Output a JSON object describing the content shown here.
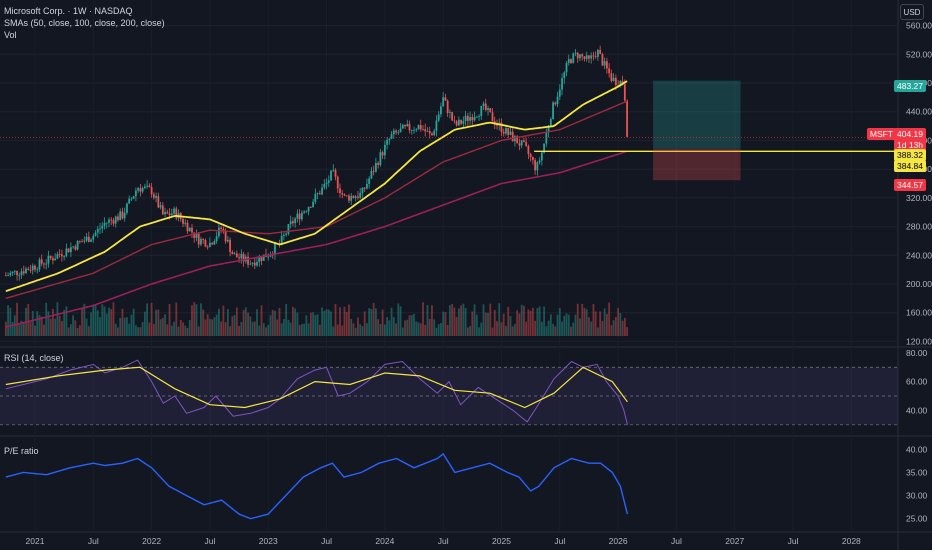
{
  "header": {
    "symbol_line": "Microsoft Corp. · 1W · NASDAQ",
    "sma_line": "SMAs (50, close, 100, close, 200, close)",
    "vol_label": "Vol",
    "currency": "USD"
  },
  "rsi_panel": {
    "label": "RSI (14, close)"
  },
  "pe_panel": {
    "label": "P/E ratio"
  },
  "price_tags": [
    {
      "text": "483.27",
      "color": "#26a69a"
    },
    {
      "text": "MSFT",
      "color": "#f23645"
    },
    {
      "text": "404.19",
      "color": "#f23645"
    },
    {
      "text": "1d 13h",
      "color": "#f23645"
    },
    {
      "text": "388.32",
      "color": "#f5e642",
      "textColor": "#000000"
    },
    {
      "text": "384.84",
      "color": "#f5e642",
      "textColor": "#000000"
    },
    {
      "text": "344.57",
      "color": "#f23645"
    }
  ],
  "colors": {
    "background": "#131722",
    "up": "#26a69a",
    "down": "#ef5350",
    "sma50": "#f5e642",
    "sma100": "#9c2b3f",
    "sma200": "#9c1f5a",
    "rsi_line": "#7e57c2",
    "rsi_ma": "#f5e642",
    "pe_line": "#2962ff",
    "hline": "#f5e642"
  },
  "chart_data": [
    {
      "type": "candlestick",
      "title": "Microsoft Corp. · 1W · NASDAQ",
      "y_axis_ticks": [
        560,
        520,
        480,
        440,
        400,
        360,
        320,
        280,
        240,
        200,
        160,
        120
      ],
      "x_axis_ticks": [
        "2021",
        "Jul",
        "2022",
        "Jul",
        "2023",
        "Jul",
        "2024",
        "Jul",
        "2025",
        "Jul",
        "2026",
        "Jul",
        "2027",
        "Jul",
        "2028"
      ],
      "x_tick_years": [
        2021.0,
        2021.5,
        2022.0,
        2022.5,
        2023.0,
        2023.5,
        2024.0,
        2024.5,
        2025.0,
        2025.5,
        2026.0,
        2026.5,
        2027.0,
        2027.5,
        2028.0
      ],
      "xlim": [
        2020.7,
        2028.4
      ],
      "ylim": [
        115,
        565
      ],
      "close_path": [
        [
          2020.75,
          212
        ],
        [
          2020.95,
          222
        ],
        [
          2021.1,
          232
        ],
        [
          2021.3,
          250
        ],
        [
          2021.5,
          268
        ],
        [
          2021.6,
          285
        ],
        [
          2021.75,
          296
        ],
        [
          2021.88,
          335
        ],
        [
          2022.0,
          330
        ],
        [
          2022.1,
          295
        ],
        [
          2022.2,
          300
        ],
        [
          2022.3,
          282
        ],
        [
          2022.4,
          262
        ],
        [
          2022.5,
          257
        ],
        [
          2022.6,
          278
        ],
        [
          2022.7,
          240
        ],
        [
          2022.85,
          230
        ],
        [
          2023.0,
          242
        ],
        [
          2023.1,
          256
        ],
        [
          2023.2,
          285
        ],
        [
          2023.35,
          310
        ],
        [
          2023.5,
          340
        ],
        [
          2023.55,
          355
        ],
        [
          2023.65,
          320
        ],
        [
          2023.8,
          325
        ],
        [
          2023.95,
          375
        ],
        [
          2024.05,
          405
        ],
        [
          2024.15,
          415
        ],
        [
          2024.3,
          420
        ],
        [
          2024.4,
          405
        ],
        [
          2024.5,
          458
        ],
        [
          2024.6,
          420
        ],
        [
          2024.7,
          430
        ],
        [
          2024.85,
          445
        ],
        [
          2024.95,
          425
        ],
        [
          2025.05,
          410
        ],
        [
          2025.2,
          390
        ],
        [
          2025.3,
          360
        ],
        [
          2025.35,
          385
        ],
        [
          2025.42,
          435
        ],
        [
          2025.5,
          475
        ],
        [
          2025.58,
          512
        ],
        [
          2025.65,
          520
        ],
        [
          2025.75,
          510
        ],
        [
          2025.82,
          525
        ],
        [
          2025.88,
          505
        ],
        [
          2025.95,
          485
        ],
        [
          2026.05,
          480
        ],
        [
          2026.08,
          404
        ]
      ],
      "sma50_path": [
        [
          2020.75,
          190
        ],
        [
          2021.2,
          215
        ],
        [
          2021.6,
          245
        ],
        [
          2021.9,
          280
        ],
        [
          2022.2,
          295
        ],
        [
          2022.5,
          290
        ],
        [
          2022.8,
          270
        ],
        [
          2023.1,
          255
        ],
        [
          2023.4,
          270
        ],
        [
          2023.7,
          305
        ],
        [
          2024.0,
          340
        ],
        [
          2024.3,
          385
        ],
        [
          2024.6,
          415
        ],
        [
          2024.9,
          425
        ],
        [
          2025.2,
          415
        ],
        [
          2025.45,
          420
        ],
        [
          2025.7,
          450
        ],
        [
          2026.0,
          475
        ],
        [
          2026.08,
          483
        ]
      ],
      "sma100_path": [
        [
          2020.75,
          180
        ],
        [
          2021.5,
          215
        ],
        [
          2022.0,
          255
        ],
        [
          2022.5,
          275
        ],
        [
          2023.0,
          270
        ],
        [
          2023.5,
          280
        ],
        [
          2024.0,
          320
        ],
        [
          2024.5,
          370
        ],
        [
          2025.0,
          400
        ],
        [
          2025.5,
          415
        ],
        [
          2026.08,
          455
        ]
      ],
      "sma200_path": [
        [
          2020.75,
          140
        ],
        [
          2021.5,
          170
        ],
        [
          2022.0,
          200
        ],
        [
          2022.5,
          225
        ],
        [
          2023.0,
          240
        ],
        [
          2023.5,
          255
        ],
        [
          2024.0,
          280
        ],
        [
          2024.5,
          310
        ],
        [
          2025.0,
          340
        ],
        [
          2025.5,
          355
        ],
        [
          2026.08,
          385
        ]
      ],
      "horizontal_line": 384.84,
      "long_position": {
        "entry": 388.32,
        "target": 483.27,
        "stop": 344.57,
        "x_start": 2026.3,
        "x_end": 2027.05
      }
    },
    {
      "type": "line",
      "title": "RSI (14, close)",
      "y_axis_ticks": [
        80.0,
        60.0,
        40.0
      ],
      "ylim": [
        25,
        82
      ],
      "levels": [
        70,
        50,
        30
      ],
      "series": [
        {
          "name": "RSI (14, close)",
          "points": [
            [
              2020.75,
              55
            ],
            [
              2020.9,
              58
            ],
            [
              2021.1,
              62
            ],
            [
              2021.3,
              68
            ],
            [
              2021.5,
              72
            ],
            [
              2021.6,
              66
            ],
            [
              2021.75,
              70
            ],
            [
              2021.88,
              75
            ],
            [
              2022.0,
              60
            ],
            [
              2022.1,
              45
            ],
            [
              2022.2,
              50
            ],
            [
              2022.3,
              38
            ],
            [
              2022.45,
              42
            ],
            [
              2022.55,
              50
            ],
            [
              2022.7,
              36
            ],
            [
              2022.85,
              38
            ],
            [
              2023.0,
              42
            ],
            [
              2023.1,
              48
            ],
            [
              2023.25,
              62
            ],
            [
              2023.4,
              68
            ],
            [
              2023.5,
              70
            ],
            [
              2023.6,
              50
            ],
            [
              2023.7,
              52
            ],
            [
              2023.85,
              60
            ],
            [
              2024.0,
              72
            ],
            [
              2024.15,
              74
            ],
            [
              2024.3,
              62
            ],
            [
              2024.45,
              52
            ],
            [
              2024.55,
              60
            ],
            [
              2024.65,
              44
            ],
            [
              2024.8,
              56
            ],
            [
              2024.95,
              48
            ],
            [
              2025.1,
              40
            ],
            [
              2025.22,
              32
            ],
            [
              2025.3,
              42
            ],
            [
              2025.45,
              62
            ],
            [
              2025.6,
              74
            ],
            [
              2025.7,
              70
            ],
            [
              2025.82,
              72
            ],
            [
              2025.9,
              60
            ],
            [
              2026.0,
              50
            ],
            [
              2026.05,
              40
            ],
            [
              2026.08,
              30
            ]
          ]
        },
        {
          "name": "RSI MA",
          "points": [
            [
              2020.75,
              58
            ],
            [
              2021.2,
              64
            ],
            [
              2021.6,
              68
            ],
            [
              2021.9,
              70
            ],
            [
              2022.2,
              55
            ],
            [
              2022.5,
              44
            ],
            [
              2022.8,
              42
            ],
            [
              2023.1,
              48
            ],
            [
              2023.4,
              60
            ],
            [
              2023.7,
              58
            ],
            [
              2024.0,
              66
            ],
            [
              2024.3,
              64
            ],
            [
              2024.6,
              54
            ],
            [
              2024.9,
              52
            ],
            [
              2025.2,
              42
            ],
            [
              2025.45,
              52
            ],
            [
              2025.7,
              70
            ],
            [
              2025.95,
              60
            ],
            [
              2026.08,
              46
            ]
          ]
        }
      ]
    },
    {
      "type": "line",
      "title": "P/E ratio",
      "y_axis_ticks": [
        40.0,
        35.0,
        30.0,
        25.0
      ],
      "ylim": [
        23,
        42
      ],
      "series": [
        {
          "name": "P/E ratio",
          "points": [
            [
              2020.75,
              34
            ],
            [
              2020.9,
              35
            ],
            [
              2021.1,
              34.5
            ],
            [
              2021.3,
              36
            ],
            [
              2021.5,
              37
            ],
            [
              2021.6,
              36.5
            ],
            [
              2021.75,
              37
            ],
            [
              2021.88,
              38
            ],
            [
              2022.0,
              36
            ],
            [
              2022.15,
              32
            ],
            [
              2022.3,
              30
            ],
            [
              2022.45,
              28
            ],
            [
              2022.6,
              29
            ],
            [
              2022.75,
              26
            ],
            [
              2022.85,
              25
            ],
            [
              2023.0,
              26
            ],
            [
              2023.15,
              30
            ],
            [
              2023.3,
              34
            ],
            [
              2023.45,
              36
            ],
            [
              2023.55,
              37
            ],
            [
              2023.65,
              34
            ],
            [
              2023.8,
              35
            ],
            [
              2023.95,
              37
            ],
            [
              2024.1,
              38
            ],
            [
              2024.25,
              36
            ],
            [
              2024.45,
              38
            ],
            [
              2024.5,
              39
            ],
            [
              2024.6,
              35
            ],
            [
              2024.75,
              36
            ],
            [
              2024.9,
              37
            ],
            [
              2025.05,
              35
            ],
            [
              2025.15,
              34
            ],
            [
              2025.25,
              31
            ],
            [
              2025.32,
              32
            ],
            [
              2025.45,
              36
            ],
            [
              2025.6,
              38
            ],
            [
              2025.75,
              37
            ],
            [
              2025.85,
              37
            ],
            [
              2025.95,
              35
            ],
            [
              2026.02,
              32
            ],
            [
              2026.08,
              26
            ]
          ]
        }
      ]
    }
  ]
}
